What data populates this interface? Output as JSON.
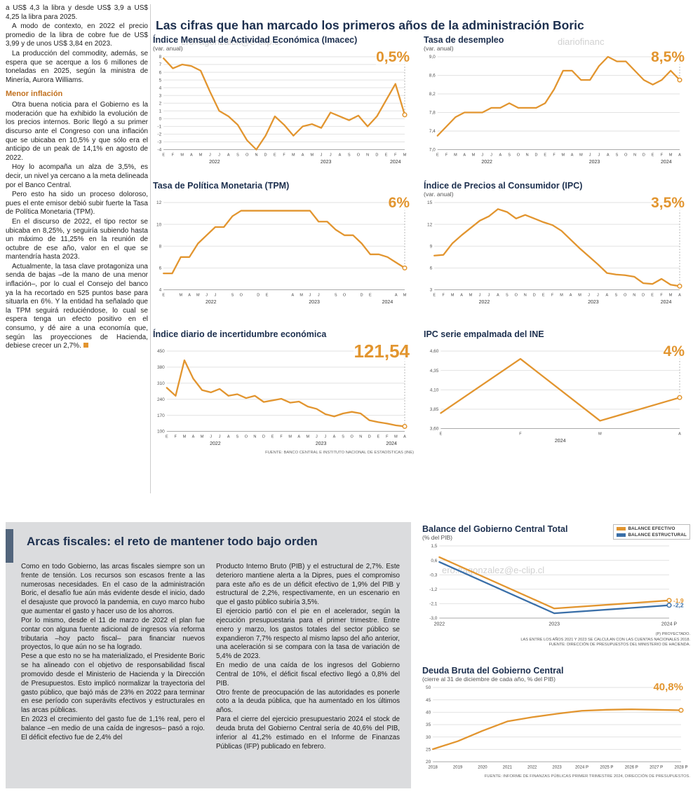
{
  "colors": {
    "orange": "#E2952F",
    "blue": "#3A6FA8",
    "navy": "#1C2F4E",
    "heading_orange": "#C2711F"
  },
  "watermarks": {
    "w1": "ero#agonzalek@e-clip.cl",
    "w2": "diariofinanc",
    "w3": "ero.#agonzalez@e-clip.cl"
  },
  "main_title": "Las cifras que han marcado los primeros años de la administración Boric",
  "left_column": {
    "paragraphs_intro": [
      "a US$ 4,3 la libra y desde US$ 3,9 a US$ 4,25 la libra para 2025.",
      "A modo de contexto, en 2022 el precio promedio de la libra de cobre fue de US$ 3,99 y de unos US$ 3,84 en 2023.",
      "La producción del commodity, además, se espera que se acerque a los 6 millones de toneladas en 2025, según la ministra de Minería, Aurora Williams."
    ],
    "heading": "Menor inflación",
    "paragraphs_inflacion": [
      "Otra buena noticia para el Gobierno es la moderación que ha exhibido la evolución de los precios internos. Boric llegó a su primer discurso ante el Congreso con una inflación que se ubicaba en 10,5% y que sólo era el anticipo de un peak de 14,1% en agosto de 2022.",
      "Hoy lo acompaña un alza de 3,5%, es decir, un nivel ya cercano a la meta delineada por el Banco Central.",
      "Pero esto ha sido un proceso doloroso, pues el ente emisor debió subir fuerte la Tasa de Política Monetaria (TPM).",
      "En el discurso de 2022, el tipo rector se ubicaba en 8,25%, y seguiría subiendo hasta un máximo de 11,25% en la reunión de octubre de ese año, valor en el que se mantendría hasta 2023."
    ],
    "last_paragraph": "Actualmente, la tasa clave protagoniza una senda de bajas –de la mano de una menor inflación–, por lo cual el Consejo del banco ya la ha recortado en 525 puntos base para situarla en 6%. Y la entidad ha señalado que la TPM seguirá reduciéndose, lo cual se espera tenga un efecto positivo en el consumo, y dé aire a una economía que, según las proyecciones de Hacienda, debiese crecer un 2,7%."
  },
  "arcas": {
    "title": "Arcas fiscales: el reto de mantener todo bajo orden",
    "col1": [
      "Como en todo Gobierno, las arcas fiscales siempre son un frente de tensión. Los recursos son escasos frente a las numerosas necesidades. En el caso de la administración Boric, el desafío fue aún más evidente desde el inicio, dado el desajuste que provocó la pandemia, en cuyo marco hubo que aumentar el gasto y hacer uso de los ahorros.",
      "Por lo mismo, desde el 11 de marzo de 2022 el plan fue contar con alguna fuente adicional de ingresos vía reforma tributaria –hoy pacto fiscal– para financiar nuevos proyectos, lo que aún no se ha logrado.",
      "Pese a que esto no se ha materializado, el Presidente Boric se ha alineado con el objetivo de responsabilidad fiscal promovido desde el Ministerio de Hacienda y la Dirección de Presupuestos. Esto implicó normalizar la trayectoria del gasto público, que bajó más de 23% en 2022 para terminar en ese período con superávits efectivos y estructurales en las arcas públicas.",
      "En 2023 el crecimiento del gasto fue de 1,1% real, pero el balance –en medio de una caída de ingresos– pasó a rojo. El déficit efectivo fue de 2,4% del"
    ],
    "col2": [
      "Producto Interno Bruto (PIB) y el estructural de 2,7%. Este deterioro mantiene alerta a la Dipres, pues el compromiso para este año es de un déficit efectivo de 1,9% del PIB y estructural de 2,2%, respectivamente, en un escenario en que el gasto público subiría 3,5%.",
      "El ejercicio partió con el pie en el acelerador, según la ejecución presupuestaria para el primer trimestre. Entre enero y marzo, los gastos totales del sector público se expandieron 7,7% respecto al mismo lapso del año anterior, una aceleración si se compara con la tasa de variación de 5,4% de 2023.",
      "En medio de una caída de los ingresos del Gobierno Central de 10%, el déficit fiscal efectivo llegó a 0,8% del PIB.",
      "Otro frente de preocupación de las autoridades es ponerle coto a la deuda pública, que ha aumentado en los últimos años.",
      "Para el cierre del ejercicio presupuestario 2024 el stock de deuda bruta del Gobierno Central sería de 40,6% del PIB, inferior al 41,2% estimado en el Informe de Finanzas Públicas (IFP) publicado en febrero."
    ]
  },
  "chart_data": [
    {
      "id": "imacec",
      "type": "line",
      "title": "Índice Mensual de Actividad Económica (Imacec)",
      "subtitle": "(var. anual)",
      "highlight": "0,5%",
      "guide": true,
      "ylim": [
        -4,
        8
      ],
      "y_ticks": [
        {
          "v": 8,
          "l": "8"
        },
        {
          "v": 7,
          "l": "7"
        },
        {
          "v": 6,
          "l": "6"
        },
        {
          "v": 5,
          "l": "5"
        },
        {
          "v": 4,
          "l": "4"
        },
        {
          "v": 3,
          "l": "3"
        },
        {
          "v": 2,
          "l": "2"
        },
        {
          "v": 1,
          "l": "1"
        },
        {
          "v": 0,
          "l": "0"
        },
        {
          "v": -1,
          "l": "-1"
        },
        {
          "v": -2,
          "l": "-2"
        },
        {
          "v": -3,
          "l": "-3"
        },
        {
          "v": -4,
          "l": "-4"
        }
      ],
      "x_labels": [
        "E",
        "F",
        "M",
        "A",
        "M",
        "J",
        "J",
        "A",
        "S",
        "O",
        "N",
        "D",
        "E",
        "F",
        "M",
        "A",
        "M",
        "J",
        "J",
        "A",
        "S",
        "O",
        "N",
        "D",
        "E",
        "F",
        "M"
      ],
      "years": [
        {
          "label": "2022",
          "from": 0,
          "to": 11
        },
        {
          "label": "2023",
          "from": 12,
          "to": 23
        },
        {
          "label": "2024",
          "from": 24,
          "to": 26
        }
      ],
      "series": [
        {
          "name": "Imacec",
          "color": "#E2952F",
          "marker_end": true,
          "values": [
            7.8,
            6.5,
            7.0,
            6.8,
            6.2,
            3.5,
            1.0,
            0.3,
            -0.8,
            -2.8,
            -4.0,
            -2.2,
            0.3,
            -0.8,
            -2.2,
            -1.0,
            -0.7,
            -1.2,
            0.8,
            0.3,
            -0.2,
            0.4,
            -1.0,
            0.3,
            2.4,
            4.5,
            0.5
          ]
        }
      ]
    },
    {
      "id": "desempleo",
      "type": "line",
      "title": "Tasa de desempleo",
      "subtitle": "(var. anual)",
      "highlight": "8,5%",
      "guide": true,
      "ylim": [
        7.0,
        9.0
      ],
      "y_ticks": [
        {
          "v": 9.0,
          "l": "9,0"
        },
        {
          "v": 8.6,
          "l": "8,6"
        },
        {
          "v": 8.2,
          "l": "8,2"
        },
        {
          "v": 7.8,
          "l": "7,8"
        },
        {
          "v": 7.4,
          "l": "7,4"
        },
        {
          "v": 7.0,
          "l": "7,0"
        }
      ],
      "x_labels": [
        "E",
        "F",
        "M",
        "A",
        "M",
        "J",
        "J",
        "A",
        "S",
        "O",
        "N",
        "D",
        "E",
        "F",
        "M",
        "A",
        "M",
        "J",
        "J",
        "A",
        "S",
        "O",
        "N",
        "D",
        "E",
        "F",
        "M",
        "A"
      ],
      "years": [
        {
          "label": "2022",
          "from": 0,
          "to": 11
        },
        {
          "label": "2023",
          "from": 12,
          "to": 23
        },
        {
          "label": "2024",
          "from": 24,
          "to": 27
        }
      ],
      "series": [
        {
          "name": "Desempleo",
          "color": "#E2952F",
          "marker_end": true,
          "values": [
            7.3,
            7.5,
            7.7,
            7.8,
            7.8,
            7.8,
            7.9,
            7.9,
            8.0,
            7.9,
            7.9,
            7.9,
            8.0,
            8.3,
            8.7,
            8.7,
            8.5,
            8.5,
            8.8,
            9.0,
            8.9,
            8.9,
            8.7,
            8.5,
            8.4,
            8.5,
            8.7,
            8.5
          ]
        }
      ]
    },
    {
      "id": "tpm",
      "type": "line",
      "title": "Tasa de Política Monetaria (TPM)",
      "subtitle": "",
      "highlight": "6%",
      "guide": true,
      "ylim": [
        4,
        12
      ],
      "y_ticks": [
        {
          "v": 12,
          "l": "12"
        },
        {
          "v": 10,
          "l": "10"
        },
        {
          "v": 8,
          "l": "8"
        },
        {
          "v": 6,
          "l": "6"
        },
        {
          "v": 4,
          "l": "4"
        }
      ],
      "x_labels": [
        "E",
        "",
        "M",
        "A",
        "M",
        "J",
        "J",
        "",
        "S",
        "O",
        "",
        "D",
        "E",
        "",
        "",
        "A",
        "M",
        "J",
        "J",
        "",
        "S",
        "O",
        "",
        "D",
        "E",
        "",
        "",
        "A",
        "M"
      ],
      "years": [
        {
          "label": "2022",
          "from": 0,
          "to": 11
        },
        {
          "label": "2023",
          "from": 12,
          "to": 23
        },
        {
          "label": "2024",
          "from": 24,
          "to": 28
        }
      ],
      "series": [
        {
          "name": "TPM",
          "color": "#E2952F",
          "marker_end": true,
          "values": [
            5.5,
            5.5,
            7.0,
            7.0,
            8.25,
            9.0,
            9.75,
            9.75,
            10.75,
            11.25,
            11.25,
            11.25,
            11.25,
            11.25,
            11.25,
            11.25,
            11.25,
            11.25,
            10.25,
            10.25,
            9.5,
            9.0,
            9.0,
            8.25,
            7.25,
            7.25,
            7.0,
            6.5,
            6.0
          ]
        }
      ]
    },
    {
      "id": "ipc",
      "type": "line",
      "title": "Índice de Precios al Consumidor (IPC)",
      "subtitle": "(var. anual)",
      "highlight": "3,5%",
      "guide": true,
      "ylim": [
        3,
        15
      ],
      "y_ticks": [
        {
          "v": 15,
          "l": "15"
        },
        {
          "v": 12,
          "l": "12"
        },
        {
          "v": 9,
          "l": "9"
        },
        {
          "v": 6,
          "l": "6"
        },
        {
          "v": 3,
          "l": "3"
        }
      ],
      "x_labels": [
        "E",
        "F",
        "M",
        "A",
        "M",
        "J",
        "J",
        "A",
        "S",
        "O",
        "N",
        "D",
        "E",
        "F",
        "M",
        "A",
        "M",
        "J",
        "J",
        "A",
        "S",
        "O",
        "N",
        "D",
        "E",
        "F",
        "M",
        "A"
      ],
      "years": [
        {
          "label": "2022",
          "from": 0,
          "to": 11
        },
        {
          "label": "2023",
          "from": 12,
          "to": 23
        },
        {
          "label": "2024",
          "from": 24,
          "to": 27
        }
      ],
      "series": [
        {
          "name": "IPC",
          "color": "#E2952F",
          "marker_end": true,
          "values": [
            7.7,
            7.8,
            9.4,
            10.5,
            11.5,
            12.5,
            13.1,
            14.1,
            13.7,
            12.8,
            13.3,
            12.8,
            12.3,
            11.9,
            11.1,
            9.9,
            8.7,
            7.6,
            6.5,
            5.3,
            5.1,
            5.0,
            4.8,
            3.9,
            3.8,
            4.5,
            3.7,
            3.5
          ]
        }
      ]
    },
    {
      "id": "incertidumbre",
      "type": "line",
      "title": "Índice diario de incertidumbre económica",
      "subtitle": "",
      "highlight": "121,54",
      "guide": true,
      "ylim": [
        100,
        450
      ],
      "y_ticks": [
        {
          "v": 450,
          "l": "450"
        },
        {
          "v": 380,
          "l": "380"
        },
        {
          "v": 310,
          "l": "310"
        },
        {
          "v": 240,
          "l": "240"
        },
        {
          "v": 170,
          "l": "170"
        },
        {
          "v": 100,
          "l": "100"
        }
      ],
      "x_labels": [
        "E",
        "F",
        "M",
        "A",
        "M",
        "J",
        "J",
        "A",
        "S",
        "O",
        "N",
        "D",
        "E",
        "F",
        "M",
        "A",
        "M",
        "J",
        "J",
        "A",
        "S",
        "O",
        "N",
        "D",
        "E",
        "F",
        "M",
        "A"
      ],
      "years": [
        {
          "label": "2022",
          "from": 0,
          "to": 11
        },
        {
          "label": "2023",
          "from": 12,
          "to": 23
        },
        {
          "label": "2024",
          "from": 24,
          "to": 27
        }
      ],
      "series": [
        {
          "name": "Incertidumbre",
          "color": "#E2952F",
          "marker_end": true,
          "values": [
            290,
            255,
            410,
            330,
            280,
            270,
            285,
            255,
            262,
            245,
            255,
            228,
            235,
            242,
            225,
            230,
            208,
            198,
            175,
            165,
            178,
            185,
            178,
            148,
            140,
            134,
            126,
            121.54
          ]
        }
      ],
      "source": "FUENTE: BANCO CENTRAL E INSTITUTO NACIONAL DE ESTADÍSTICAS (INE)"
    },
    {
      "id": "ipc_ine",
      "type": "line",
      "title": "IPC serie empalmada del INE",
      "subtitle": "",
      "highlight": "4%",
      "guide": true,
      "ylim": [
        3.6,
        4.6
      ],
      "y_ticks": [
        {
          "v": 4.6,
          "l": "4,60"
        },
        {
          "v": 4.35,
          "l": "4,35"
        },
        {
          "v": 4.1,
          "l": "4,10"
        },
        {
          "v": 3.85,
          "l": "3,85"
        },
        {
          "v": 3.6,
          "l": "3,60"
        }
      ],
      "x_labels": [
        "E",
        "F",
        "M",
        "A"
      ],
      "years": [
        {
          "label": "2024",
          "from": 0,
          "to": 3
        }
      ],
      "series": [
        {
          "name": "IPC empalmado",
          "color": "#E2952F",
          "marker_end": true,
          "values": [
            3.8,
            4.5,
            3.7,
            4.0
          ]
        }
      ]
    },
    {
      "id": "balance",
      "type": "line",
      "title": "Balance del Gobierno Central Total",
      "subtitle": "(% del PIB)",
      "highlight": "",
      "guide": false,
      "ylim": [
        -3.0,
        1.5
      ],
      "y_ticks": [
        {
          "v": 1.5,
          "l": "1,5"
        },
        {
          "v": 0.6,
          "l": "0,6"
        },
        {
          "v": -0.3,
          "l": "-0,3"
        },
        {
          "v": -1.2,
          "l": "-1,2"
        },
        {
          "v": -2.1,
          "l": "-2,1"
        },
        {
          "v": -3.0,
          "l": "-3,0"
        }
      ],
      "x_labels": [
        "2022",
        "2023",
        "2024 P"
      ],
      "x_label_size": 7,
      "series": [
        {
          "name": "BALANCE EFECTIVO",
          "color": "#E2952F",
          "marker_end": true,
          "end_label": "-1,9",
          "values": [
            0.8,
            -2.4,
            -1.9
          ]
        },
        {
          "name": "BALANCE ESTRUCTURAL",
          "color": "#3A6FA8",
          "marker_end": true,
          "end_label": "-2,2",
          "values": [
            0.5,
            -2.7,
            -2.2
          ]
        }
      ],
      "notes": [
        "(P) PROYECTADO.",
        "LAS ENTRE LOS AÑOS 2021 Y 2023 SE CALCULAN  CON LAS CUENTAS NACIONALES 2018.",
        "FUENTE: DIRECCIÓN DE PRESUPUESTOS DEL MINISTERIO DE HACIENDA."
      ]
    },
    {
      "id": "deuda",
      "type": "line",
      "title": "Deuda Bruta del Gobierno Central",
      "subtitle": "(cierre al 31 de diciembre de cada año, % del PIB)",
      "highlight": "40,8%",
      "guide": false,
      "ylim": [
        20,
        50
      ],
      "y_ticks": [
        {
          "v": 50,
          "l": "50"
        },
        {
          "v": 45,
          "l": "45"
        },
        {
          "v": 40,
          "l": "40"
        },
        {
          "v": 35,
          "l": "35"
        },
        {
          "v": 30,
          "l": "30"
        },
        {
          "v": 25,
          "l": "25"
        },
        {
          "v": 20,
          "l": "20"
        }
      ],
      "x_labels": [
        "2018",
        "2019",
        "2020",
        "2021",
        "2022",
        "2023",
        "2024 P",
        "2025 P",
        "2026 P",
        "2027 P",
        "2028 P"
      ],
      "x_label_size": 6,
      "series": [
        {
          "name": "Deuda bruta",
          "color": "#E2952F",
          "marker_end": true,
          "values": [
            25.1,
            28.3,
            32.5,
            36.3,
            38.0,
            39.4,
            40.6,
            41.0,
            41.2,
            41.0,
            40.8
          ]
        }
      ],
      "source": "FUENTE: INFORME DE FINANZAS PÚBLICAS PRIMER TRIMESTRE 2024, DIRECCIÓN DE PRESUPUESTOS."
    }
  ]
}
